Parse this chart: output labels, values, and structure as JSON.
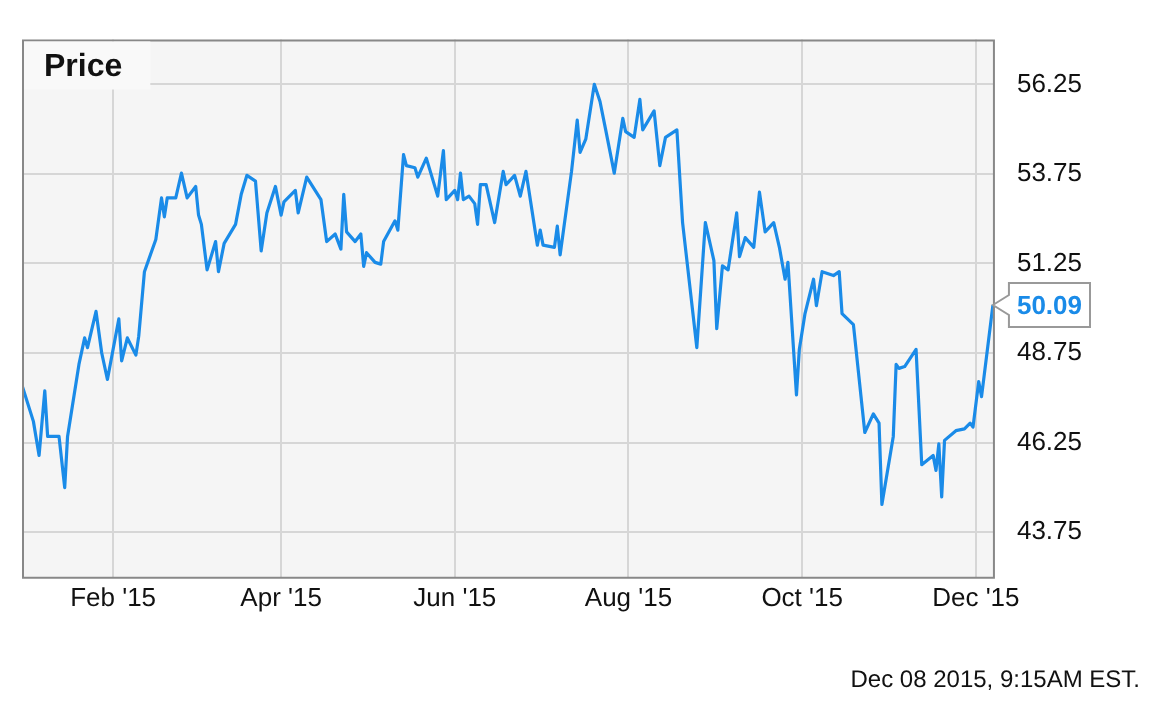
{
  "chart_data": {
    "type": "line",
    "title": "Price",
    "x": [
      "2014-12-31",
      "2015-01-04",
      "2015-01-06",
      "2015-01-08",
      "2015-01-09",
      "2015-01-13",
      "2015-01-15",
      "2015-01-16",
      "2015-01-20",
      "2015-01-22",
      "2015-01-23",
      "2015-01-26",
      "2015-01-28",
      "2015-01-30",
      "2015-02-03",
      "2015-02-04",
      "2015-02-06",
      "2015-02-09",
      "2015-02-10",
      "2015-02-12",
      "2015-02-16",
      "2015-02-18",
      "2015-02-19",
      "2015-02-20",
      "2015-02-23",
      "2015-02-25",
      "2015-02-27",
      "2015-03-02",
      "2015-03-03",
      "2015-03-04",
      "2015-03-06",
      "2015-03-09",
      "2015-03-10",
      "2015-03-12",
      "2015-03-16",
      "2015-03-18",
      "2015-03-20",
      "2015-03-23",
      "2015-03-25",
      "2015-03-27",
      "2015-03-30",
      "2015-04-01",
      "2015-04-02",
      "2015-04-06",
      "2015-04-07",
      "2015-04-10",
      "2015-04-15",
      "2015-04-17",
      "2015-04-20",
      "2015-04-22",
      "2015-04-23",
      "2015-04-24",
      "2015-04-27",
      "2015-04-29",
      "2015-04-30",
      "2015-05-01",
      "2015-05-04",
      "2015-05-06",
      "2015-05-07",
      "2015-05-11",
      "2015-05-12",
      "2015-05-14",
      "2015-05-15",
      "2015-05-18",
      "2015-05-19",
      "2015-05-22",
      "2015-05-26",
      "2015-05-28",
      "2015-05-29",
      "2015-06-01",
      "2015-06-02",
      "2015-06-03",
      "2015-06-04",
      "2015-06-06",
      "2015-06-08",
      "2015-06-09",
      "2015-06-10",
      "2015-06-12",
      "2015-06-15",
      "2015-06-18",
      "2015-06-19",
      "2015-06-22",
      "2015-06-24",
      "2015-06-26",
      "2015-06-30",
      "2015-07-01",
      "2015-07-02",
      "2015-07-06",
      "2015-07-07",
      "2015-07-08",
      "2015-07-12",
      "2015-07-14",
      "2015-07-15",
      "2015-07-17",
      "2015-07-20",
      "2015-07-22",
      "2015-07-24",
      "2015-07-27",
      "2015-07-30",
      "2015-07-31",
      "2015-08-03",
      "2015-08-05",
      "2015-08-06",
      "2015-08-10",
      "2015-08-12",
      "2015-08-14",
      "2015-08-18",
      "2015-08-20",
      "2015-08-25",
      "2015-08-28",
      "2015-08-31",
      "2015-09-01",
      "2015-09-03",
      "2015-09-05",
      "2015-09-08",
      "2015-09-09",
      "2015-09-11",
      "2015-09-14",
      "2015-09-16",
      "2015-09-18",
      "2015-09-21",
      "2015-09-23",
      "2015-09-25",
      "2015-09-26",
      "2015-09-29",
      "2015-09-30",
      "2015-10-02",
      "2015-10-05",
      "2015-10-06",
      "2015-10-08",
      "2015-10-12",
      "2015-10-14",
      "2015-10-15",
      "2015-10-19",
      "2015-10-23",
      "2015-10-26",
      "2015-10-28",
      "2015-10-29",
      "2015-11-02",
      "2015-11-03",
      "2015-11-04",
      "2015-11-06",
      "2015-11-10",
      "2015-11-12",
      "2015-11-16",
      "2015-11-17",
      "2015-11-18",
      "2015-11-19",
      "2015-11-20",
      "2015-11-24",
      "2015-11-27",
      "2015-11-29",
      "2015-11-30",
      "2015-12-02",
      "2015-12-03",
      "2015-12-07"
    ],
    "series": [
      {
        "color": "#1a8be8",
        "values": [
          47.85,
          46.84,
          45.89,
          47.69,
          46.42,
          46.42,
          44.99,
          46.42,
          48.43,
          49.17,
          48.9,
          49.91,
          48.75,
          48.01,
          49.7,
          48.53,
          49.17,
          48.69,
          49.22,
          51.02,
          51.92,
          53.08,
          52.55,
          53.08,
          53.08,
          53.77,
          53.08,
          53.4,
          52.6,
          52.34,
          51.07,
          51.86,
          51.02,
          51.81,
          52.34,
          53.18,
          53.71,
          53.55,
          51.6,
          52.66,
          53.4,
          52.6,
          52.97,
          53.29,
          52.66,
          53.66,
          53.03,
          51.86,
          52.07,
          51.65,
          53.18,
          52.13,
          51.86,
          52.07,
          51.17,
          51.55,
          51.28,
          51.23,
          51.86,
          52.44,
          52.18,
          54.29,
          53.98,
          53.92,
          53.66,
          54.19,
          53.13,
          54.4,
          53.03,
          53.29,
          53.03,
          53.77,
          53.03,
          53.13,
          52.92,
          52.34,
          53.45,
          53.45,
          52.39,
          53.82,
          53.45,
          53.71,
          53.13,
          53.82,
          51.76,
          52.18,
          51.76,
          51.7,
          52.29,
          51.49,
          53.82,
          55.25,
          54.35,
          54.72,
          56.25,
          55.77,
          54.98,
          53.77,
          55.3,
          54.93,
          54.77,
          55.83,
          54.98,
          55.51,
          53.98,
          54.77,
          54.98,
          52.39,
          48.9,
          52.39,
          51.33,
          49.43,
          51.18,
          51.07,
          52.66,
          51.44,
          51.97,
          51.7,
          53.24,
          52.13,
          52.39,
          51.7,
          50.81,
          51.28,
          47.58,
          48.85,
          49.85,
          50.81,
          50.07,
          51.02,
          50.91,
          51.02,
          49.85,
          49.54,
          46.53,
          47.05,
          46.79,
          44.52,
          46.42,
          48.43,
          48.32,
          48.37,
          48.85,
          45.63,
          45.89,
          45.47,
          46.21,
          44.73,
          46.31,
          46.58,
          46.63,
          46.79,
          46.68,
          47.95,
          47.53,
          50.09
        ]
      }
    ],
    "xlim": [
      "2014-12-31",
      "2015-12-07"
    ],
    "xticks": [
      {
        "value": "2015-02-01",
        "label": "Feb '15"
      },
      {
        "value": "2015-04-01",
        "label": "Apr '15"
      },
      {
        "value": "2015-06-01",
        "label": "Jun '15"
      },
      {
        "value": "2015-08-01",
        "label": "Aug '15"
      },
      {
        "value": "2015-10-01",
        "label": "Oct '15"
      },
      {
        "value": "2015-12-01",
        "label": "Dec '15"
      }
    ],
    "ylim": [
      42.5,
      57.5
    ],
    "yticks": [
      43.75,
      46.25,
      48.75,
      51.25,
      53.75,
      56.25
    ],
    "grid": true,
    "legend": false,
    "marker": "none",
    "line_style": "solid",
    "annotations": [
      {
        "text": "50.09",
        "x": "2015-12-07",
        "y": 50.09
      },
      "Dec 08 2015, 9:15AM EST."
    ]
  }
}
